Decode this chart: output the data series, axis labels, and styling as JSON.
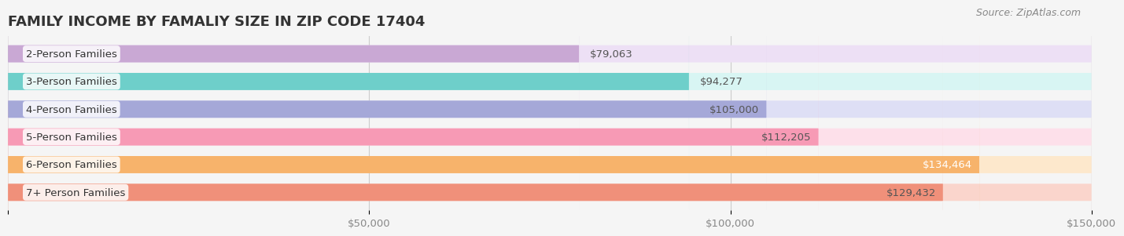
{
  "title": "FAMILY INCOME BY FAMALIY SIZE IN ZIP CODE 17404",
  "source": "Source: ZipAtlas.com",
  "categories": [
    "2-Person Families",
    "3-Person Families",
    "4-Person Families",
    "5-Person Families",
    "6-Person Families",
    "7+ Person Families"
  ],
  "values": [
    79063,
    94277,
    105000,
    112205,
    134464,
    129432
  ],
  "bar_colors": [
    "#c9a8d4",
    "#6ecfca",
    "#a5a8d8",
    "#f79ab5",
    "#f7b36b",
    "#f0907a"
  ],
  "bar_bg_colors": [
    "#ede0f5",
    "#d8f5f3",
    "#dedff5",
    "#fde0ea",
    "#fde8cc",
    "#fad5cc"
  ],
  "label_colors": [
    "#888888",
    "#888888",
    "#888888",
    "#555555",
    "#ffffff",
    "#555555"
  ],
  "xlim": [
    0,
    150000
  ],
  "xticks": [
    0,
    50000,
    100000,
    150000
  ],
  "xtick_labels": [
    "",
    "$50,000",
    "$100,000",
    "$150,000"
  ],
  "background_color": "#f5f5f5",
  "bar_height": 0.62,
  "title_fontsize": 13,
  "label_fontsize": 9.5,
  "value_fontsize": 9.5,
  "category_fontsize": 9.5,
  "source_fontsize": 9
}
